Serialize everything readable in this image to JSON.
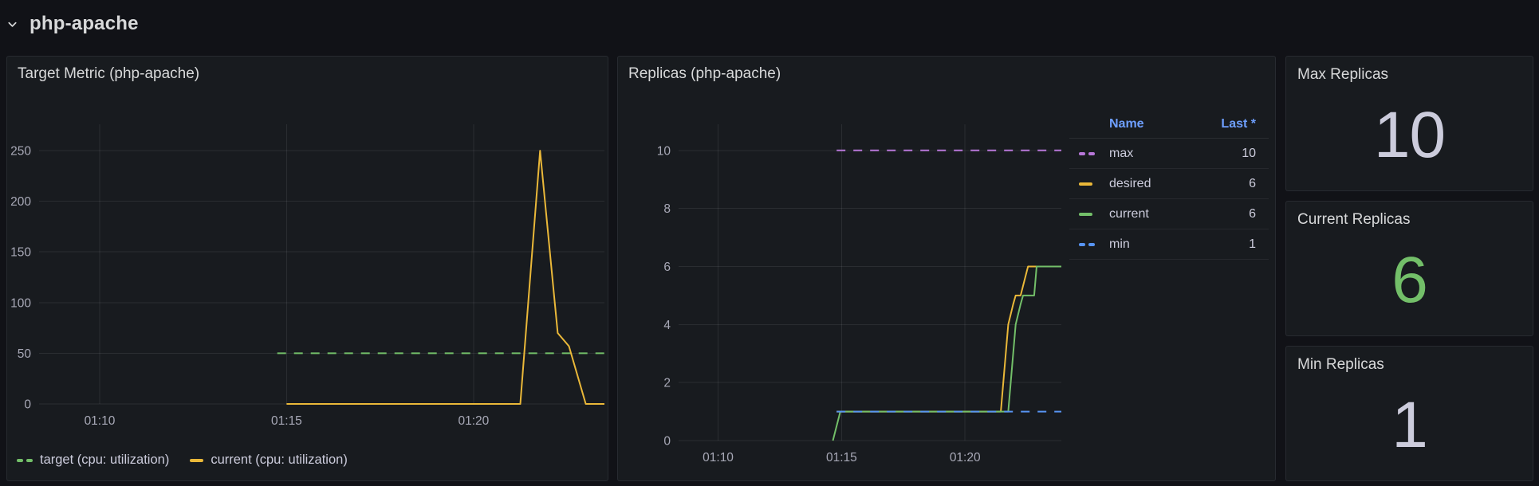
{
  "page": {
    "background": "#111217",
    "panel_background": "#181B1F"
  },
  "header": {
    "section_title": "php-apache",
    "collapse_icon": "chevron-down"
  },
  "panels": {
    "target_metric": {
      "title": "Target Metric (php-apache)"
    },
    "replicas": {
      "title": "Replicas (php-apache)",
      "legend_table": {
        "name_header": "Name",
        "last_header": "Last *",
        "header_color": "#6E9FFF",
        "rows": [
          {
            "name": "max",
            "last": "10",
            "color": "#B877D9",
            "dashed": true
          },
          {
            "name": "desired",
            "last": "6",
            "color": "#EAB839",
            "dashed": false
          },
          {
            "name": "current",
            "last": "6",
            "color": "#73BF69",
            "dashed": false
          },
          {
            "name": "min",
            "last": "1",
            "color": "#5794F2",
            "dashed": true
          }
        ]
      }
    },
    "stats": [
      {
        "title": "Max Replicas",
        "value": "10",
        "value_color": "#CCCCDC"
      },
      {
        "title": "Current Replicas",
        "value": "6",
        "value_color": "#73BF69"
      },
      {
        "title": "Min Replicas",
        "value": "1",
        "value_color": "#CCCCDC"
      }
    ]
  },
  "chart_data": [
    {
      "id": "target_metric",
      "type": "line",
      "title": "Target Metric (php-apache)",
      "x_axis": "time",
      "x_range": [
        68.38,
        83.5
      ],
      "x_ticks": [
        {
          "t": 70,
          "label": "01:10"
        },
        {
          "t": 75,
          "label": "01:15"
        },
        {
          "t": 80,
          "label": "01:20"
        }
      ],
      "y_ticks": [
        0,
        50,
        100,
        150,
        200,
        250
      ],
      "y_range": [
        0,
        276
      ],
      "grid": true,
      "legend_position": "bottom",
      "series": [
        {
          "name": "target (cpu: utilization)",
          "color": "#73BF69",
          "dashed": true,
          "points": [
            [
              74.75,
              50
            ],
            [
              83.5,
              50
            ]
          ]
        },
        {
          "name": "current (cpu: utilization)",
          "color": "#EAB839",
          "dashed": false,
          "points": [
            [
              75,
              0
            ],
            [
              81.25,
              0
            ],
            [
              81.78,
              250
            ],
            [
              82.25,
              70
            ],
            [
              82.55,
              57
            ],
            [
              83.0,
              0
            ],
            [
              83.5,
              0
            ]
          ]
        }
      ]
    },
    {
      "id": "replicas",
      "type": "line",
      "title": "Replicas (php-apache)",
      "x_axis": "time",
      "x_range": [
        68.4,
        83.9
      ],
      "x_ticks": [
        {
          "t": 70,
          "label": "01:10"
        },
        {
          "t": 75,
          "label": "01:15"
        },
        {
          "t": 80,
          "label": "01:20"
        }
      ],
      "y_ticks": [
        0,
        2,
        4,
        6,
        8,
        10
      ],
      "y_range": [
        0,
        10.9
      ],
      "grid": true,
      "legend_position": "right-table",
      "series": [
        {
          "name": "max",
          "color": "#B877D9",
          "dashed": true,
          "last": 10,
          "points": [
            [
              74.8,
              10
            ],
            [
              83.9,
              10
            ]
          ]
        },
        {
          "name": "desired",
          "color": "#EAB839",
          "dashed": false,
          "last": 6,
          "points": [
            [
              74.8,
              1
            ],
            [
              81.45,
              1
            ],
            [
              81.75,
              4
            ],
            [
              81.95,
              4.7
            ],
            [
              82.05,
              5
            ],
            [
              82.25,
              5
            ],
            [
              82.55,
              6
            ],
            [
              83.9,
              6
            ]
          ]
        },
        {
          "name": "current",
          "color": "#73BF69",
          "dashed": false,
          "last": 6,
          "points": [
            [
              74.65,
              0
            ],
            [
              74.95,
              1
            ],
            [
              81.75,
              1
            ],
            [
              82.05,
              4
            ],
            [
              82.25,
              4.7
            ],
            [
              82.35,
              5
            ],
            [
              82.8,
              5
            ],
            [
              82.9,
              6
            ],
            [
              83.9,
              6
            ]
          ]
        },
        {
          "name": "min",
          "color": "#5794F2",
          "dashed": true,
          "last": 1,
          "points": [
            [
              74.8,
              1
            ],
            [
              83.9,
              1
            ]
          ]
        }
      ]
    }
  ]
}
